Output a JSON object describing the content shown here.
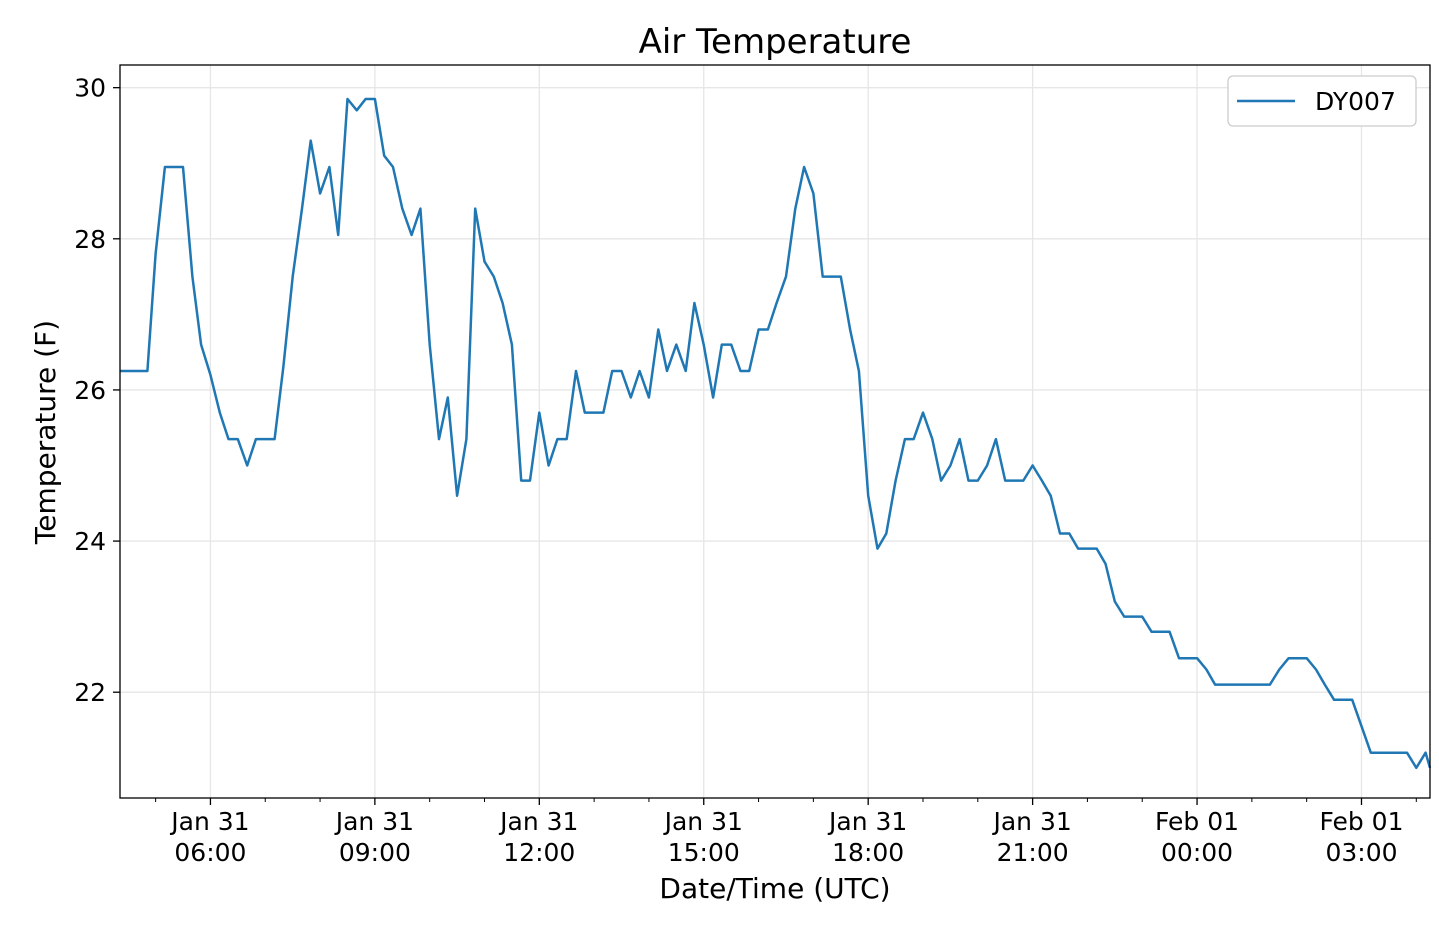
{
  "chart_data": {
    "type": "line",
    "title": "Air Temperature",
    "xlabel": "Date/Time (UTC)",
    "ylabel": "Temperature (F)",
    "x_unit": "hour offset from Jan 31 00:00 UTC",
    "xlim": [
      4.35,
      28.25
    ],
    "ylim": [
      20.6,
      30.3
    ],
    "yticks": [
      22,
      24,
      26,
      28,
      30
    ],
    "xticks": [
      {
        "at": 6,
        "line1": "Jan 31",
        "line2": "06:00"
      },
      {
        "at": 9,
        "line1": "Jan 31",
        "line2": "09:00"
      },
      {
        "at": 12,
        "line1": "Jan 31",
        "line2": "12:00"
      },
      {
        "at": 15,
        "line1": "Jan 31",
        "line2": "15:00"
      },
      {
        "at": 18,
        "line1": "Jan 31",
        "line2": "18:00"
      },
      {
        "at": 21,
        "line1": "Jan 31",
        "line2": "21:00"
      },
      {
        "at": 24,
        "line1": "Feb 01",
        "line2": "00:00"
      },
      {
        "at": 27,
        "line1": "Feb 01",
        "line2": "03:00"
      }
    ],
    "minor_xticks": [
      5,
      7,
      8,
      10,
      11,
      13,
      14,
      16,
      17,
      19,
      20,
      22,
      23,
      25,
      26,
      28
    ],
    "grid": true,
    "legend_position": "top-right",
    "series": [
      {
        "name": "DY007",
        "color": "#1f77b4",
        "x": [
          4.35,
          4.85,
          5.0,
          5.17,
          5.33,
          5.5,
          5.67,
          5.83,
          6.0,
          6.17,
          6.33,
          6.5,
          6.67,
          6.83,
          7.0,
          7.17,
          7.33,
          7.5,
          7.67,
          7.83,
          8.0,
          8.17,
          8.33,
          8.5,
          8.67,
          8.83,
          9.0,
          9.17,
          9.33,
          9.5,
          9.67,
          9.83,
          10.0,
          10.17,
          10.33,
          10.5,
          10.67,
          10.83,
          11.0,
          11.17,
          11.33,
          11.5,
          11.67,
          11.83,
          12.0,
          12.17,
          12.33,
          12.5,
          12.67,
          12.83,
          13.0,
          13.17,
          13.33,
          13.5,
          13.67,
          13.83,
          14.0,
          14.17,
          14.33,
          14.5,
          14.67,
          14.83,
          15.0,
          15.17,
          15.33,
          15.5,
          15.67,
          15.83,
          16.0,
          16.17,
          16.33,
          16.5,
          16.67,
          16.83,
          17.0,
          17.17,
          17.33,
          17.5,
          17.67,
          17.83,
          18.0,
          18.17,
          18.33,
          18.5,
          18.67,
          18.83,
          19.0,
          19.17,
          19.33,
          19.5,
          19.67,
          19.83,
          20.0,
          20.17,
          20.33,
          20.5,
          20.67,
          20.83,
          21.0,
          21.17,
          21.33,
          21.5,
          21.67,
          21.83,
          22.0,
          22.17,
          22.33,
          22.5,
          22.67,
          22.83,
          23.0,
          23.17,
          23.33,
          23.5,
          23.67,
          23.83,
          24.0,
          24.17,
          24.33,
          24.5,
          24.67,
          24.83,
          25.0,
          25.17,
          25.33,
          25.5,
          25.67,
          25.83,
          26.0,
          26.17,
          26.33,
          26.5,
          26.67,
          26.83,
          27.0,
          27.17,
          27.33,
          27.5,
          27.67,
          27.83,
          28.0,
          28.17,
          28.25
        ],
        "y": [
          26.25,
          26.25,
          27.8,
          28.95,
          28.95,
          28.95,
          27.5,
          26.6,
          26.2,
          25.7,
          25.35,
          25.35,
          25.0,
          25.35,
          25.35,
          25.35,
          26.3,
          27.5,
          28.4,
          29.3,
          28.6,
          28.95,
          28.05,
          29.85,
          29.7,
          29.85,
          29.85,
          29.1,
          28.95,
          28.4,
          28.05,
          28.4,
          26.6,
          25.35,
          25.9,
          24.6,
          25.35,
          28.4,
          27.7,
          27.5,
          27.15,
          26.6,
          24.8,
          24.8,
          25.7,
          25.0,
          25.35,
          25.35,
          26.25,
          25.7,
          25.7,
          25.7,
          26.25,
          26.25,
          25.9,
          26.25,
          25.9,
          26.8,
          26.25,
          26.6,
          26.25,
          27.15,
          26.6,
          25.9,
          26.6,
          26.6,
          26.25,
          26.25,
          26.8,
          26.8,
          27.15,
          27.5,
          28.4,
          28.95,
          28.6,
          27.5,
          27.5,
          27.5,
          26.8,
          26.25,
          24.6,
          23.9,
          24.1,
          24.8,
          25.35,
          25.35,
          25.7,
          25.35,
          24.8,
          25.0,
          25.35,
          24.8,
          24.8,
          25.0,
          25.35,
          24.8,
          24.8,
          24.8,
          25.0,
          24.8,
          24.6,
          24.1,
          24.1,
          23.9,
          23.9,
          23.9,
          23.7,
          23.2,
          23.0,
          23.0,
          23.0,
          22.8,
          22.8,
          22.8,
          22.45,
          22.45,
          22.45,
          22.3,
          22.1,
          22.1,
          22.1,
          22.1,
          22.1,
          22.1,
          22.1,
          22.3,
          22.45,
          22.45,
          22.45,
          22.3,
          22.1,
          21.9,
          21.9,
          21.9,
          21.55,
          21.2,
          21.2,
          21.2,
          21.2,
          21.2,
          21.0,
          21.2,
          21.0
        ]
      }
    ]
  }
}
